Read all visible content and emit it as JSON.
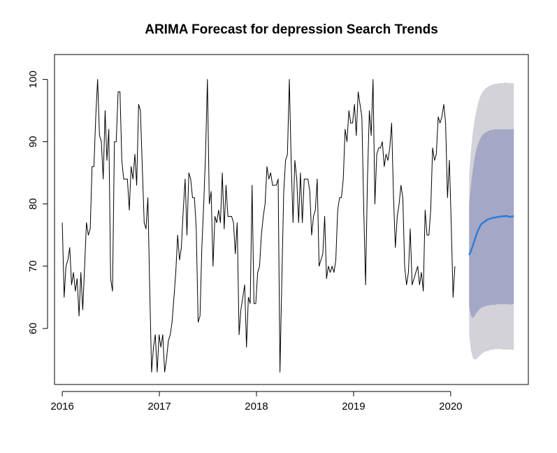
{
  "chart_data": {
    "type": "line",
    "title": "ARIMA Forecast for depression Search Trends",
    "xlabel": "",
    "ylabel": "",
    "xlim": [
      2015.92,
      2020.8
    ],
    "ylim": [
      51,
      104
    ],
    "x_ticks": [
      2016,
      2017,
      2018,
      2019,
      2020
    ],
    "y_ticks": [
      60,
      70,
      80,
      90,
      100
    ],
    "colors": {
      "observed": "#000000",
      "forecast": "#2b7bd6",
      "ci95": "#d2d2d8",
      "ci80": "#a4a7c6"
    },
    "series": [
      {
        "name": "observed",
        "start": 2016.0,
        "step": 0.019165,
        "values": [
          77,
          65,
          70,
          71,
          73,
          67,
          69,
          66,
          68,
          62,
          69,
          63,
          70,
          77,
          75,
          76,
          86,
          86,
          94,
          100,
          91,
          90,
          84,
          95,
          87,
          92,
          68,
          66,
          90,
          90,
          98,
          98,
          87,
          84,
          84,
          84,
          79,
          86,
          84,
          88,
          83,
          96,
          95,
          86,
          77,
          76,
          81,
          66,
          53,
          57,
          59,
          53,
          59,
          57,
          59,
          53,
          55,
          58,
          59,
          61,
          65,
          69,
          75,
          71,
          73,
          79,
          84,
          75,
          85,
          84,
          81,
          81,
          76,
          61,
          62,
          73,
          80,
          88,
          100,
          80,
          82,
          70,
          78,
          77,
          79,
          77,
          85,
          76,
          83,
          78,
          78,
          78,
          77,
          72,
          77,
          59,
          63,
          65,
          67,
          57,
          65,
          64,
          83,
          64,
          64,
          69,
          70,
          75,
          78,
          80,
          86,
          84,
          85,
          83,
          83,
          83,
          84,
          53,
          68,
          82,
          87,
          88,
          100,
          87,
          77,
          87,
          84,
          77,
          85,
          77,
          84,
          84,
          84,
          82,
          75,
          78,
          79,
          84,
          70,
          71,
          72,
          78,
          68,
          70,
          69,
          70,
          69,
          71,
          79,
          81,
          81,
          84,
          92,
          90,
          95,
          93,
          93,
          96,
          91,
          98,
          96,
          94,
          79,
          67,
          84,
          95,
          91,
          100,
          80,
          88,
          89,
          89,
          90,
          86,
          88,
          87,
          89,
          93,
          81,
          73,
          78,
          80,
          83,
          81,
          70,
          67,
          69,
          76,
          67,
          68,
          69,
          70,
          67,
          69,
          66,
          79,
          75,
          75,
          79,
          89,
          87,
          88,
          94,
          93,
          94,
          96,
          93,
          81,
          87,
          77,
          65,
          70
        ]
      },
      {
        "name": "forecast",
        "start": 2020.19,
        "step": 0.019165,
        "values": [
          71.8,
          72.5,
          73.3,
          74.2,
          75.1,
          75.9,
          76.5,
          76.9,
          77.1,
          77.3,
          77.5,
          77.6,
          77.7,
          77.8,
          77.8,
          77.9,
          77.9,
          78.0,
          78.0,
          78.0,
          78.1,
          78.0,
          77.9,
          78.0,
          78.0
        ]
      }
    ],
    "bands": [
      {
        "name": "95% interval",
        "lower": [
          59.0,
          56.5,
          55.3,
          55.0,
          55.1,
          55.4,
          55.7,
          56.0,
          56.2,
          56.3,
          56.4,
          56.5,
          56.6,
          56.6,
          56.7,
          56.7,
          56.7,
          56.7,
          56.6,
          56.6,
          56.6,
          56.6,
          56.6,
          56.6,
          56.6
        ],
        "upper": [
          84.6,
          88.5,
          91.5,
          93.6,
          95.1,
          96.4,
          97.3,
          97.9,
          98.3,
          98.6,
          98.8,
          99.0,
          99.1,
          99.2,
          99.3,
          99.3,
          99.4,
          99.4,
          99.4,
          99.5,
          99.5,
          99.4,
          99.4,
          99.4,
          99.4
        ]
      },
      {
        "name": "80% interval",
        "lower": [
          63.5,
          62.0,
          61.7,
          62.0,
          62.5,
          62.9,
          63.2,
          63.4,
          63.5,
          63.6,
          63.7,
          63.7,
          63.8,
          63.8,
          63.8,
          63.9,
          63.9,
          63.9,
          63.9,
          63.9,
          63.9,
          63.9,
          63.8,
          63.9,
          63.9
        ],
        "upper": [
          80.1,
          83.0,
          85.5,
          87.4,
          88.8,
          89.8,
          90.5,
          91.0,
          91.3,
          91.5,
          91.7,
          91.8,
          91.9,
          91.9,
          92.0,
          92.0,
          92.0,
          92.0,
          92.0,
          92.0,
          92.0,
          92.0,
          92.0,
          92.0,
          92.0
        ]
      }
    ]
  }
}
